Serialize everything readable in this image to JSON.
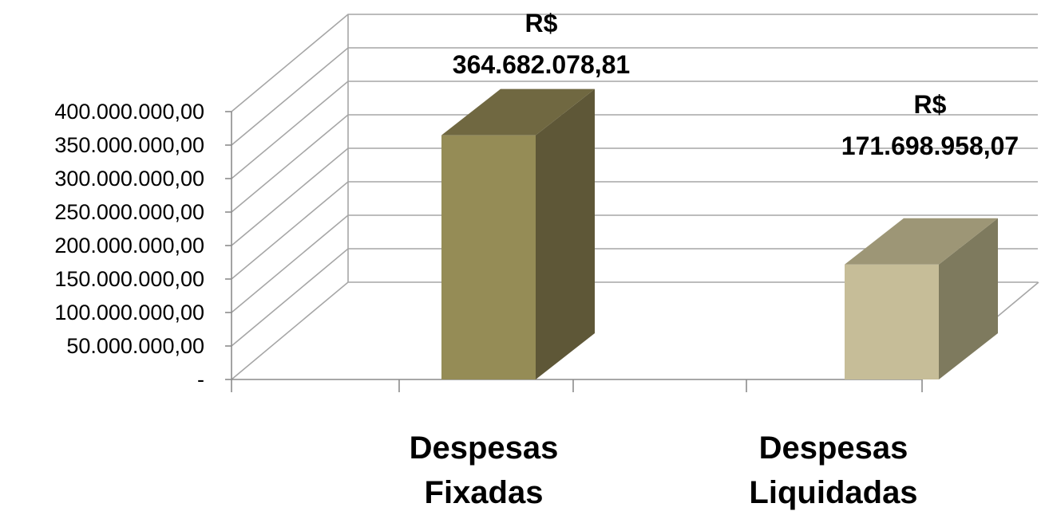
{
  "chart_data": {
    "type": "bar",
    "title": "",
    "xlabel": "",
    "ylabel": "",
    "categories": [
      [
        "Despesas",
        "Fixadas"
      ],
      [
        "Despesas",
        "Liquidadas"
      ]
    ],
    "values": [
      364682078.81,
      171698958.07
    ],
    "data_labels": [
      [
        "R$",
        "364.682.078,81"
      ],
      [
        "R$",
        "171.698.958,07"
      ]
    ],
    "ylim": [
      0,
      400000000
    ],
    "yticks": [
      {
        "value": 0,
        "label": "-"
      },
      {
        "value": 50000000,
        "label": "50.000.000,00"
      },
      {
        "value": 100000000,
        "label": "100.000.000,00"
      },
      {
        "value": 150000000,
        "label": "150.000.000,00"
      },
      {
        "value": 200000000,
        "label": "200.000.000,00"
      },
      {
        "value": 250000000,
        "label": "250.000.000,00"
      },
      {
        "value": 300000000,
        "label": "300.000.000,00"
      },
      {
        "value": 350000000,
        "label": "350.000.000,00"
      },
      {
        "value": 400000000,
        "label": "400.000.000,00"
      }
    ],
    "grid": true,
    "legend": "none",
    "style": "3d-column",
    "colors": [
      {
        "front": "#958c56",
        "side": "#5e5737",
        "top": "#706841"
      },
      {
        "front": "#c6bd98",
        "side": "#7e7a5e",
        "top": "#9d9676"
      }
    ]
  }
}
